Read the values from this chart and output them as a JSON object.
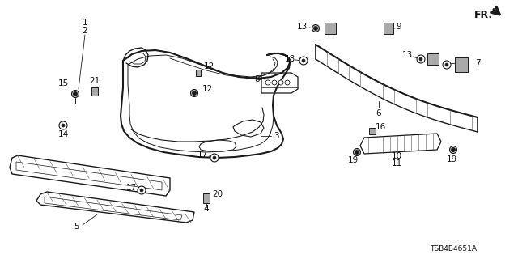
{
  "bg_color": "#ffffff",
  "diagram_code": "TSB4B4651A",
  "fr_label": "FR.",
  "line_color": "#1a1a1a",
  "text_color": "#111111",
  "font_size": 7.5
}
